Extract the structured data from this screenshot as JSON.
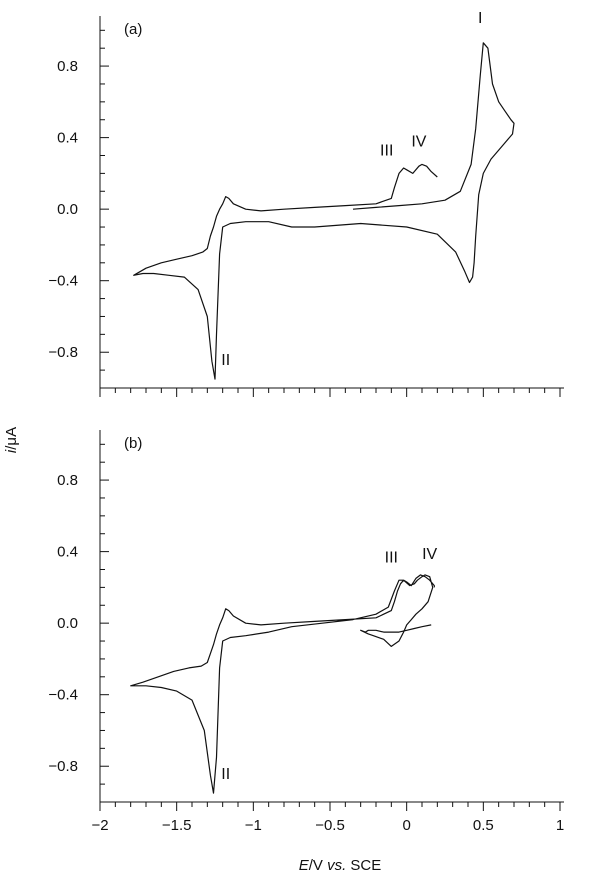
{
  "chart_data": [
    {
      "type": "line",
      "panel_label": "(a)",
      "xlim": [
        -2,
        1
      ],
      "ylim": [
        -1.0,
        1.08
      ],
      "y_ticks": [
        -0.8,
        -0.4,
        0.0,
        0.4,
        0.8
      ],
      "y_tick_labels": [
        "-0.8",
        "-0.4",
        "0.0",
        "0.4",
        "0.8"
      ],
      "series": [
        {
          "x": [
            -0.35,
            -0.2,
            -0.05,
            0.1,
            0.25,
            0.35,
            0.42,
            0.45,
            0.48,
            0.5,
            0.53,
            0.56,
            0.6,
            0.64,
            0.68,
            0.7,
            0.69,
            0.62,
            0.55,
            0.5,
            0.47,
            0.45,
            0.44,
            0.43,
            0.41,
            0.38,
            0.32,
            0.2,
            0.0,
            -0.3,
            -0.6,
            -0.75,
            -0.9,
            -1.05,
            -1.15,
            -1.2,
            -1.22,
            -1.24,
            -1.25,
            -1.27,
            -1.3,
            -1.36,
            -1.45,
            -1.55,
            -1.65,
            -1.72,
            -1.78,
            -1.7,
            -1.6,
            -1.5,
            -1.4,
            -1.33,
            -1.3,
            -1.28,
            -1.26,
            -1.24,
            -1.22,
            -1.2,
            -1.18,
            -1.16,
            -1.13,
            -1.05,
            -0.95,
            -0.8,
            -0.6,
            -0.4,
            -0.2,
            -0.1,
            -0.08,
            -0.05,
            -0.02,
            0.0,
            0.04,
            0.08,
            0.1,
            0.13,
            0.16,
            0.2
          ],
          "y": [
            0.0,
            0.01,
            0.02,
            0.03,
            0.05,
            0.1,
            0.25,
            0.45,
            0.75,
            0.93,
            0.9,
            0.7,
            0.6,
            0.55,
            0.5,
            0.48,
            0.42,
            0.35,
            0.28,
            0.2,
            0.08,
            -0.15,
            -0.3,
            -0.38,
            -0.41,
            -0.35,
            -0.24,
            -0.14,
            -0.1,
            -0.08,
            -0.1,
            -0.1,
            -0.07,
            -0.07,
            -0.08,
            -0.1,
            -0.25,
            -0.7,
            -0.95,
            -0.85,
            -0.6,
            -0.45,
            -0.38,
            -0.37,
            -0.36,
            -0.36,
            -0.37,
            -0.33,
            -0.3,
            -0.28,
            -0.26,
            -0.24,
            -0.22,
            -0.15,
            -0.1,
            -0.04,
            0.0,
            0.03,
            0.07,
            0.06,
            0.03,
            0.0,
            -0.01,
            0.0,
            0.01,
            0.02,
            0.03,
            0.06,
            0.12,
            0.2,
            0.23,
            0.22,
            0.2,
            0.24,
            0.25,
            0.24,
            0.21,
            0.18
          ]
        }
      ],
      "annotations": [
        {
          "text": "I",
          "x": 0.48,
          "y": 1.04
        },
        {
          "text": "II",
          "x": -1.18,
          "y": -0.87
        },
        {
          "text": "III",
          "x": -0.13,
          "y": 0.3
        },
        {
          "text": "IV",
          "x": 0.08,
          "y": 0.35
        }
      ]
    },
    {
      "type": "line",
      "panel_label": "(b)",
      "xlim": [
        -2,
        1
      ],
      "ylim": [
        -1.0,
        1.08
      ],
      "y_ticks": [
        -0.8,
        -0.4,
        0.0,
        0.4,
        0.8
      ],
      "y_tick_labels": [
        "-0.8",
        "-0.4",
        "0.0",
        "0.4",
        "0.8"
      ],
      "x_ticks": [
        -2,
        -1.5,
        -1,
        -0.5,
        0,
        0.5,
        1
      ],
      "x_tick_labels": [
        "-2",
        "-1.5",
        "-1",
        "-0.5",
        "0",
        "0.5",
        "1"
      ],
      "series": [
        {
          "x": [
            0.16,
            0.1,
            0.05,
            0.0,
            -0.05,
            -0.1,
            -0.15,
            -0.2,
            -0.25,
            -0.27,
            -0.3,
            -0.25,
            -0.15,
            -0.1,
            -0.05,
            -0.02,
            0.0,
            0.03,
            0.06,
            0.1,
            0.14,
            0.17,
            0.15,
            0.12,
            0.1,
            0.07,
            0.05,
            0.02,
            -0.02,
            -0.05,
            -0.08,
            -0.12,
            -0.2,
            -0.35,
            -0.55,
            -0.75,
            -0.9,
            -1.05,
            -1.15,
            -1.2,
            -1.22,
            -1.24,
            -1.26,
            -1.28,
            -1.32,
            -1.4,
            -1.5,
            -1.6,
            -1.7,
            -1.8,
            -1.72,
            -1.62,
            -1.52,
            -1.42,
            -1.34,
            -1.3,
            -1.28,
            -1.26,
            -1.24,
            -1.22,
            -1.2,
            -1.18,
            -1.16,
            -1.13,
            -1.05,
            -0.95,
            -0.8,
            -0.6,
            -0.4,
            -0.2,
            -0.1,
            -0.08,
            -0.06,
            -0.04,
            -0.02,
            0.0,
            0.03,
            0.06,
            0.09,
            0.12,
            0.15,
            0.18,
            0.18
          ],
          "y": [
            -0.01,
            -0.02,
            -0.03,
            -0.04,
            -0.05,
            -0.05,
            -0.05,
            -0.04,
            -0.04,
            -0.05,
            -0.04,
            -0.06,
            -0.09,
            -0.13,
            -0.1,
            -0.05,
            -0.01,
            0.02,
            0.05,
            0.08,
            0.12,
            0.2,
            0.26,
            0.27,
            0.26,
            0.24,
            0.22,
            0.21,
            0.24,
            0.24,
            0.18,
            0.09,
            0.05,
            0.02,
            0.0,
            -0.02,
            -0.05,
            -0.07,
            -0.08,
            -0.1,
            -0.25,
            -0.75,
            -0.95,
            -0.85,
            -0.6,
            -0.43,
            -0.38,
            -0.36,
            -0.35,
            -0.35,
            -0.33,
            -0.3,
            -0.27,
            -0.25,
            -0.24,
            -0.22,
            -0.17,
            -0.12,
            -0.06,
            -0.01,
            0.03,
            0.08,
            0.07,
            0.04,
            0.0,
            -0.01,
            0.0,
            0.01,
            0.02,
            0.03,
            0.07,
            0.12,
            0.18,
            0.22,
            0.24,
            0.23,
            0.21,
            0.25,
            0.27,
            0.26,
            0.24,
            0.21,
            0.2
          ]
        }
      ],
      "annotations": [
        {
          "text": "II",
          "x": -1.18,
          "y": -0.87
        },
        {
          "text": "III",
          "x": -0.1,
          "y": 0.34
        },
        {
          "text": "IV",
          "x": 0.15,
          "y": 0.36
        }
      ]
    }
  ],
  "y_axis_title_italic": "i",
  "y_axis_title_rest": "/μA",
  "x_axis_title_italic_1": "E",
  "x_axis_title_mid": "/V ",
  "x_axis_title_italic_2": "vs.",
  "x_axis_title_end": " SCE"
}
